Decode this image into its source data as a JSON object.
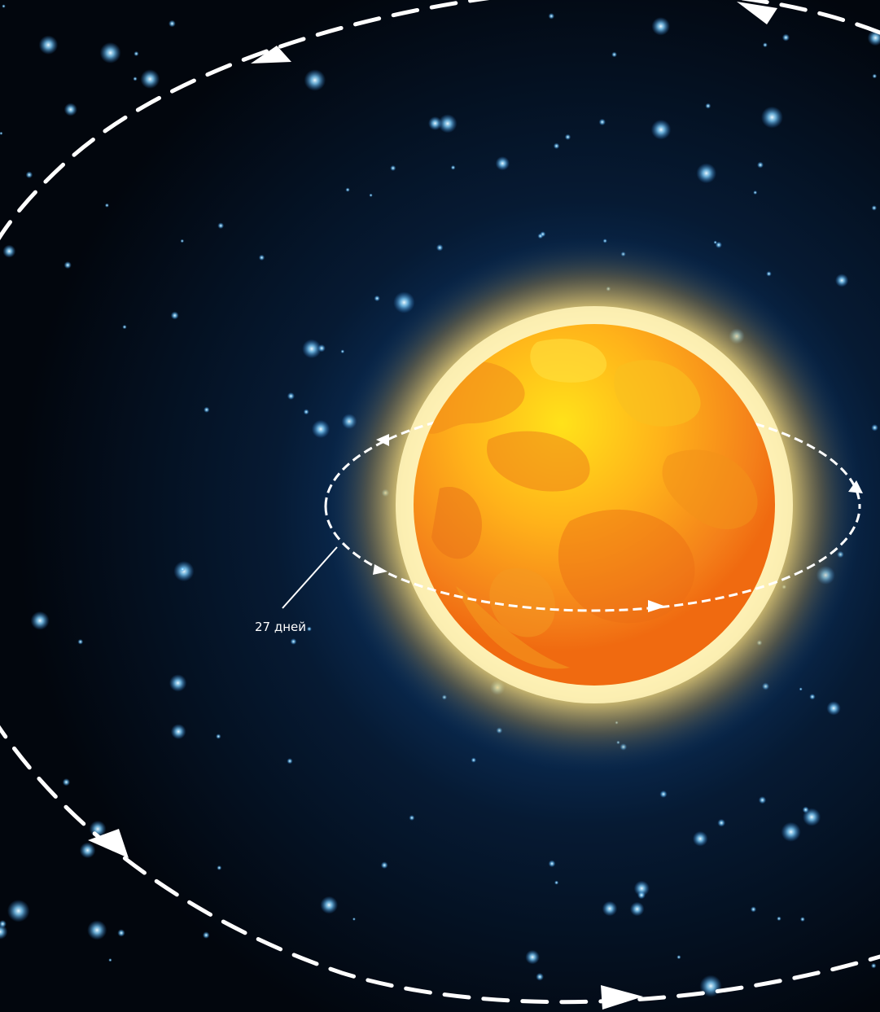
{
  "scene": {
    "rotation_label": "27 дней"
  },
  "colors": {
    "space_dark": "#02060d",
    "space_glow": "#0d3a6e",
    "star_blue": "#7fd0ff",
    "sun_core": "#ffd21a",
    "sun_edge": "#f07a10",
    "sun_halo": "#ffe9a0",
    "orbit_line": "#ffffff"
  }
}
